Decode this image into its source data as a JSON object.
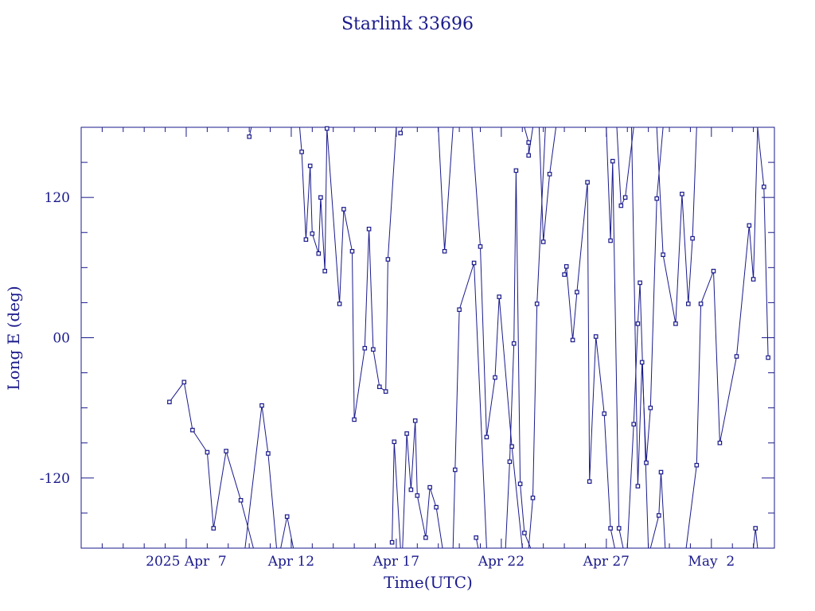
{
  "chart_data": {
    "type": "line",
    "title": "Starlink 33696",
    "xlabel": "Time(UTC)",
    "ylabel": "Long E (deg)",
    "xlim": [
      0,
      33
    ],
    "ylim": [
      -180,
      180
    ],
    "x_ticks": [
      {
        "label": "2025 Apr  7",
        "x": 5
      },
      {
        "label": "Apr 12",
        "x": 10
      },
      {
        "label": "Apr 17",
        "x": 15
      },
      {
        "label": "Apr 22",
        "x": 20
      },
      {
        "label": "Apr 27",
        "x": 25
      },
      {
        "label": "May  2",
        "x": 30
      }
    ],
    "y_ticks": [
      {
        "label": "-120",
        "y": -120
      },
      {
        "label": "00",
        "y": 0
      },
      {
        "label": "120",
        "y": 120
      }
    ],
    "grid": false,
    "series": [
      {
        "segments": [
          [
            [
              4.2,
              -55
            ],
            [
              4.9,
              -38
            ],
            [
              5.3,
              -79
            ],
            [
              6.0,
              -98
            ],
            [
              6.3,
              -163
            ],
            [
              6.9,
              -97
            ],
            [
              7.6,
              -139
            ],
            [
              8.2,
              -180
            ]
          ],
          [
            [
              7.8,
              -180
            ],
            [
              8.6,
              -58
            ],
            [
              8.9,
              -99
            ],
            [
              9.3,
              -180
            ]
          ],
          [
            [
              9.5,
              -180
            ],
            [
              9.8,
              -153
            ],
            [
              10.1,
              -180
            ]
          ],
          [
            [
              8.0,
              172
            ],
            [
              8.1,
              180
            ]
          ],
          [
            [
              9.4,
              180
            ],
            [
              10.4,
              180
            ],
            [
              10.5,
              159
            ],
            [
              10.7,
              84
            ],
            [
              10.9,
              147
            ],
            [
              11.0,
              89
            ],
            [
              11.3,
              72
            ],
            [
              11.4,
              120
            ],
            [
              11.6,
              57
            ],
            [
              11.7,
              180
            ]
          ],
          [
            [
              11.7,
              179
            ],
            [
              12.3,
              29
            ],
            [
              12.5,
              110
            ],
            [
              12.9,
              74
            ],
            [
              13.0,
              -70
            ],
            [
              13.5,
              -9
            ],
            [
              13.7,
              93
            ],
            [
              13.9,
              -10
            ],
            [
              14.2,
              -42
            ],
            [
              14.5,
              -46
            ],
            [
              14.6,
              67
            ],
            [
              15.0,
              180
            ]
          ],
          [
            [
              15.2,
              175
            ],
            [
              15.3,
              180
            ]
          ],
          [
            [
              14.8,
              -175
            ],
            [
              14.9,
              -89
            ],
            [
              15.2,
              -180
            ]
          ],
          [
            [
              15.3,
              -180
            ],
            [
              15.5,
              -82
            ],
            [
              15.7,
              -130
            ],
            [
              15.9,
              -71
            ],
            [
              16.0,
              -135
            ],
            [
              16.4,
              -171
            ],
            [
              16.6,
              -128
            ],
            [
              16.9,
              -145
            ],
            [
              17.2,
              -180
            ]
          ],
          [
            [
              17.7,
              -180
            ],
            [
              17.8,
              -113
            ],
            [
              18.0,
              24
            ],
            [
              18.7,
              64
            ],
            [
              19.3,
              -180
            ]
          ],
          [
            [
              18.8,
              -171
            ],
            [
              18.9,
              -180
            ]
          ],
          [
            [
              17.0,
              180
            ],
            [
              17.3,
              74
            ],
            [
              17.7,
              180
            ]
          ],
          [
            [
              18.6,
              180
            ],
            [
              19.0,
              78
            ],
            [
              19.3,
              -85
            ],
            [
              19.7,
              -34
            ],
            [
              19.9,
              35
            ],
            [
              20.5,
              -93
            ],
            [
              21.0,
              -180
            ]
          ],
          [
            [
              20.2,
              -180
            ],
            [
              20.4,
              -106
            ],
            [
              20.6,
              -5
            ],
            [
              20.7,
              143
            ],
            [
              20.9,
              -125
            ],
            [
              21.1,
              -167
            ],
            [
              21.4,
              -180
            ]
          ],
          [
            [
              21.1,
              180
            ],
            [
              21.3,
              167
            ],
            [
              21.3,
              156
            ],
            [
              21.5,
              180
            ]
          ],
          [
            [
              21.3,
              -180
            ],
            [
              21.5,
              -137
            ],
            [
              21.7,
              29
            ],
            [
              22.1,
              180
            ]
          ],
          [
            [
              21.8,
              180
            ],
            [
              22.0,
              82
            ],
            [
              22.3,
              140
            ],
            [
              22.6,
              180
            ]
          ],
          [
            [
              23.0,
              54
            ],
            [
              23.1,
              61
            ],
            [
              23.4,
              -2
            ],
            [
              23.6,
              39
            ],
            [
              24.1,
              133
            ],
            [
              24.2,
              -123
            ],
            [
              24.5,
              1
            ],
            [
              24.9,
              -65
            ],
            [
              25.2,
              -163
            ],
            [
              25.4,
              -180
            ]
          ],
          [
            [
              25.0,
              180
            ],
            [
              25.2,
              83
            ],
            [
              25.3,
              151
            ],
            [
              25.6,
              -163
            ],
            [
              25.8,
              -180
            ]
          ],
          [
            [
              25.5,
              180
            ],
            [
              25.7,
              113
            ],
            [
              25.9,
              120
            ],
            [
              26.3,
              180
            ]
          ],
          [
            [
              26.0,
              -180
            ],
            [
              26.3,
              -74
            ],
            [
              26.5,
              12
            ],
            [
              26.6,
              47
            ],
            [
              27.0,
              -180
            ]
          ],
          [
            [
              26.2,
              180
            ],
            [
              26.5,
              -127
            ],
            [
              26.7,
              -21
            ],
            [
              26.9,
              -107
            ],
            [
              27.1,
              -60
            ],
            [
              27.4,
              119
            ],
            [
              27.7,
              180
            ]
          ],
          [
            [
              27.1,
              -180
            ],
            [
              27.5,
              -152
            ],
            [
              27.6,
              -115
            ],
            [
              27.8,
              -180
            ]
          ],
          [
            [
              27.4,
              180
            ],
            [
              27.7,
              71
            ],
            [
              28.3,
              12
            ],
            [
              28.6,
              123
            ],
            [
              28.9,
              29
            ],
            [
              29.1,
              85
            ],
            [
              29.3,
              180
            ]
          ],
          [
            [
              28.8,
              -180
            ],
            [
              29.3,
              -109
            ],
            [
              29.5,
              29
            ],
            [
              30.1,
              57
            ],
            [
              30.4,
              -90
            ],
            [
              31.2,
              -16
            ],
            [
              31.8,
              96
            ],
            [
              32.0,
              50
            ],
            [
              32.2,
              180
            ]
          ],
          [
            [
              32.0,
              -180
            ],
            [
              32.1,
              -163
            ],
            [
              32.2,
              -180
            ]
          ],
          [
            [
              32.2,
              180
            ],
            [
              32.5,
              129
            ],
            [
              32.7,
              -17
            ]
          ]
        ]
      }
    ]
  }
}
